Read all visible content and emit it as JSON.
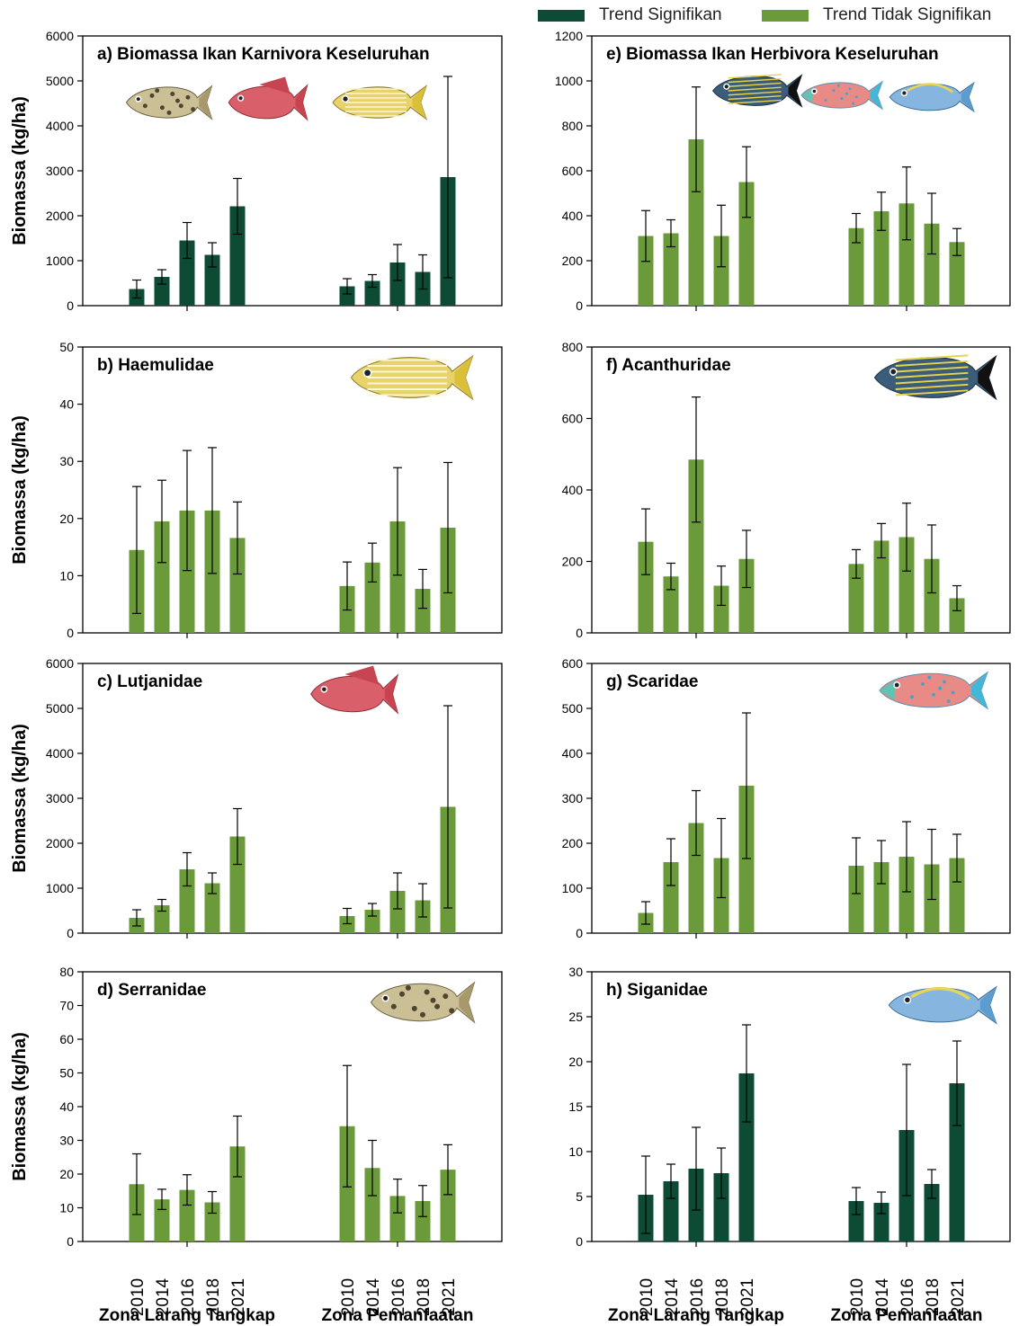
{
  "legend": {
    "significant": "Trend Signifikan",
    "not_significant": "Trend Tidak Signifikan",
    "colors": {
      "significant": "#0e4b34",
      "not_significant": "#6a9a3a"
    }
  },
  "shared": {
    "years": [
      "2010",
      "2014",
      "2016",
      "2018",
      "2021"
    ],
    "zones": [
      "Zona Larang Tangkap",
      "Zona Pemanfaatan"
    ],
    "ylabel": "Biomassa (kg/ha)"
  },
  "chart_data": [
    {
      "id": "a",
      "type": "bar",
      "title": "a) Biomassa Ikan Karnivora Keseluruhan",
      "ylabel": "Biomassa (kg/ha)",
      "ylim": [
        0,
        6000
      ],
      "yticks": [
        "0",
        "1000",
        "2000",
        "3000",
        "4000",
        "5000",
        "6000"
      ],
      "trend": "significant",
      "categories": [
        "2010",
        "2014",
        "2016",
        "2018",
        "2021"
      ],
      "icons": [
        "grouper-icon",
        "snapper-icon",
        "sweetlips-icon"
      ],
      "series": [
        {
          "zone": "Zona Larang Tangkap",
          "values": [
            370,
            640,
            1450,
            1130,
            2210
          ],
          "errors": [
            200,
            160,
            400,
            270,
            620
          ]
        },
        {
          "zone": "Zona Pemanfaatan",
          "values": [
            430,
            550,
            960,
            750,
            2860
          ],
          "errors": [
            170,
            140,
            400,
            380,
            2240
          ]
        }
      ]
    },
    {
      "id": "e",
      "type": "bar",
      "title": "e) Biomassa Ikan Herbivora Keseluruhan",
      "ylabel": "",
      "ylim": [
        0,
        1200
      ],
      "yticks": [
        "0",
        "200",
        "400",
        "600",
        "800",
        "1000",
        "1200"
      ],
      "trend": "not_significant",
      "categories": [
        "2010",
        "2014",
        "2016",
        "2018",
        "2021"
      ],
      "icons": [
        "surgeonfish-icon",
        "parrotfish-icon",
        "rabbitfish-icon"
      ],
      "series": [
        {
          "zone": "Zona Larang Tangkap",
          "values": [
            310,
            322,
            740,
            310,
            550
          ],
          "errors": [
            113,
            60,
            233,
            137,
            157
          ]
        },
        {
          "zone": "Zona Pemanfaatan",
          "values": [
            345,
            420,
            455,
            365,
            283
          ],
          "errors": [
            65,
            85,
            162,
            135,
            60
          ]
        }
      ]
    },
    {
      "id": "b",
      "type": "bar",
      "title": "b) Haemulidae",
      "ylabel": "Biomassa (kg/ha)",
      "ylim": [
        0,
        50
      ],
      "yticks": [
        "0",
        "10",
        "20",
        "30",
        "40",
        "50"
      ],
      "trend": "not_significant",
      "categories": [
        "2010",
        "2014",
        "2016",
        "2018",
        "2021"
      ],
      "icons": [
        "sweetlips-icon"
      ],
      "series": [
        {
          "zone": "Zona Larang Tangkap",
          "values": [
            14.5,
            19.5,
            21.4,
            21.4,
            16.6
          ],
          "errors": [
            11.1,
            7.2,
            10.5,
            11.0,
            6.3
          ]
        },
        {
          "zone": "Zona Pemanfaatan",
          "values": [
            8.2,
            12.3,
            19.5,
            7.7,
            18.4
          ],
          "errors": [
            4.2,
            3.4,
            9.4,
            3.4,
            11.4
          ]
        }
      ]
    },
    {
      "id": "f",
      "type": "bar",
      "title": "f) Acanthuridae",
      "ylabel": "",
      "ylim": [
        0,
        800
      ],
      "yticks": [
        "0",
        "200",
        "400",
        "600",
        "800"
      ],
      "trend": "not_significant",
      "categories": [
        "2010",
        "2014",
        "2016",
        "2018",
        "2021"
      ],
      "icons": [
        "surgeonfish-icon"
      ],
      "series": [
        {
          "zone": "Zona Larang Tangkap",
          "values": [
            255,
            158,
            485,
            132,
            207
          ],
          "errors": [
            92,
            37,
            175,
            55,
            80
          ]
        },
        {
          "zone": "Zona Pemanfaatan",
          "values": [
            193,
            258,
            268,
            207,
            97
          ],
          "errors": [
            40,
            48,
            95,
            95,
            35
          ]
        }
      ]
    },
    {
      "id": "c",
      "type": "bar",
      "title": "c) Lutjanidae",
      "ylabel": "Biomassa (kg/ha)",
      "ylim": [
        0,
        6000
      ],
      "yticks": [
        "0",
        "1000",
        "2000",
        "3000",
        "4000",
        "5000",
        "6000"
      ],
      "trend": "not_significant",
      "categories": [
        "2010",
        "2014",
        "2016",
        "2018",
        "2021"
      ],
      "icons": [
        "snapper-icon"
      ],
      "series": [
        {
          "zone": "Zona Larang Tangkap",
          "values": [
            340,
            620,
            1420,
            1110,
            2150
          ],
          "errors": [
            180,
            130,
            370,
            230,
            620
          ]
        },
        {
          "zone": "Zona Pemanfaatan",
          "values": [
            380,
            520,
            940,
            730,
            2810
          ],
          "errors": [
            170,
            140,
            400,
            370,
            2250
          ]
        }
      ]
    },
    {
      "id": "g",
      "type": "bar",
      "title": "g) Scaridae",
      "ylabel": "",
      "ylim": [
        0,
        600
      ],
      "yticks": [
        "0",
        "100",
        "200",
        "300",
        "400",
        "500",
        "600"
      ],
      "trend": "not_significant",
      "categories": [
        "2010",
        "2014",
        "2016",
        "2018",
        "2021"
      ],
      "icons": [
        "parrotfish-icon"
      ],
      "series": [
        {
          "zone": "Zona Larang Tangkap",
          "values": [
            45,
            158,
            245,
            167,
            328
          ],
          "errors": [
            25,
            52,
            72,
            88,
            162
          ]
        },
        {
          "zone": "Zona Pemanfaatan",
          "values": [
            150,
            158,
            170,
            153,
            167
          ],
          "errors": [
            62,
            48,
            78,
            78,
            53
          ]
        }
      ]
    },
    {
      "id": "d",
      "type": "bar",
      "title": "d) Serranidae",
      "ylabel": "Biomassa (kg/ha)",
      "ylim": [
        0,
        80
      ],
      "yticks": [
        "0",
        "10",
        "20",
        "30",
        "40",
        "50",
        "60",
        "70",
        "80"
      ],
      "trend": "not_significant",
      "categories": [
        "2010",
        "2014",
        "2016",
        "2018",
        "2021"
      ],
      "icons": [
        "grouper-icon"
      ],
      "series": [
        {
          "zone": "Zona Larang Tangkap",
          "values": [
            17.0,
            12.5,
            15.3,
            11.6,
            28.2
          ],
          "errors": [
            9.0,
            3.0,
            4.5,
            3.2,
            9.0
          ]
        },
        {
          "zone": "Zona Pemanfaatan",
          "values": [
            34.2,
            21.8,
            13.5,
            12.0,
            21.3
          ],
          "errors": [
            18.0,
            8.2,
            5.0,
            4.6,
            7.4
          ]
        }
      ]
    },
    {
      "id": "h",
      "type": "bar",
      "title": "h) Siganidae",
      "ylabel": "",
      "ylim": [
        0,
        30
      ],
      "yticks": [
        "0",
        "5",
        "10",
        "15",
        "20",
        "25",
        "30"
      ],
      "trend": "significant",
      "categories": [
        "2010",
        "2014",
        "2016",
        "2018",
        "2021"
      ],
      "icons": [
        "rabbitfish-icon"
      ],
      "series": [
        {
          "zone": "Zona Larang Tangkap",
          "values": [
            5.2,
            6.7,
            8.1,
            7.6,
            18.7
          ],
          "errors": [
            4.3,
            1.9,
            4.6,
            2.8,
            5.4
          ]
        },
        {
          "zone": "Zona Pemanfaatan",
          "values": [
            4.5,
            4.3,
            12.4,
            6.4,
            17.6
          ],
          "errors": [
            1.5,
            1.2,
            7.3,
            1.6,
            4.7
          ]
        }
      ]
    }
  ]
}
